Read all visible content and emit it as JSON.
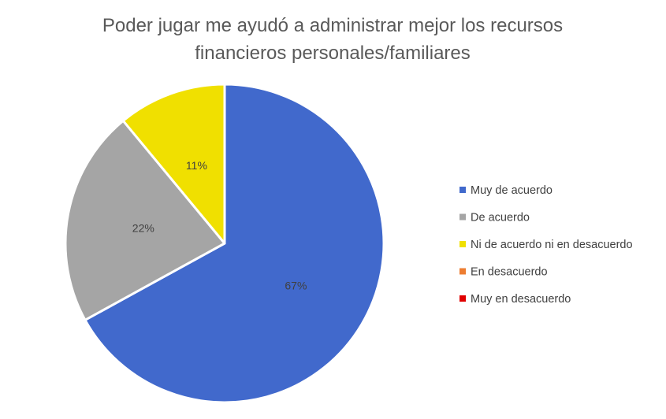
{
  "chart_data": {
    "type": "pie",
    "title_lines": [
      "Poder jugar me ayudó a administrar mejor los recursos",
      "financieros personales/familiares"
    ],
    "categories": [
      "Muy de acuerdo",
      "De acuerdo",
      "Ni de acuerdo ni en desacuerdo",
      "En desacuerdo",
      "Muy en desacuerdo"
    ],
    "values": [
      67,
      22,
      11,
      0,
      0
    ],
    "labels": [
      "67%",
      "22%",
      "11%",
      "",
      ""
    ],
    "colors": [
      "#4169cc",
      "#a5a5a5",
      "#f0e000",
      "#ed7d31",
      "#e00000"
    ],
    "legend_position": "right"
  }
}
